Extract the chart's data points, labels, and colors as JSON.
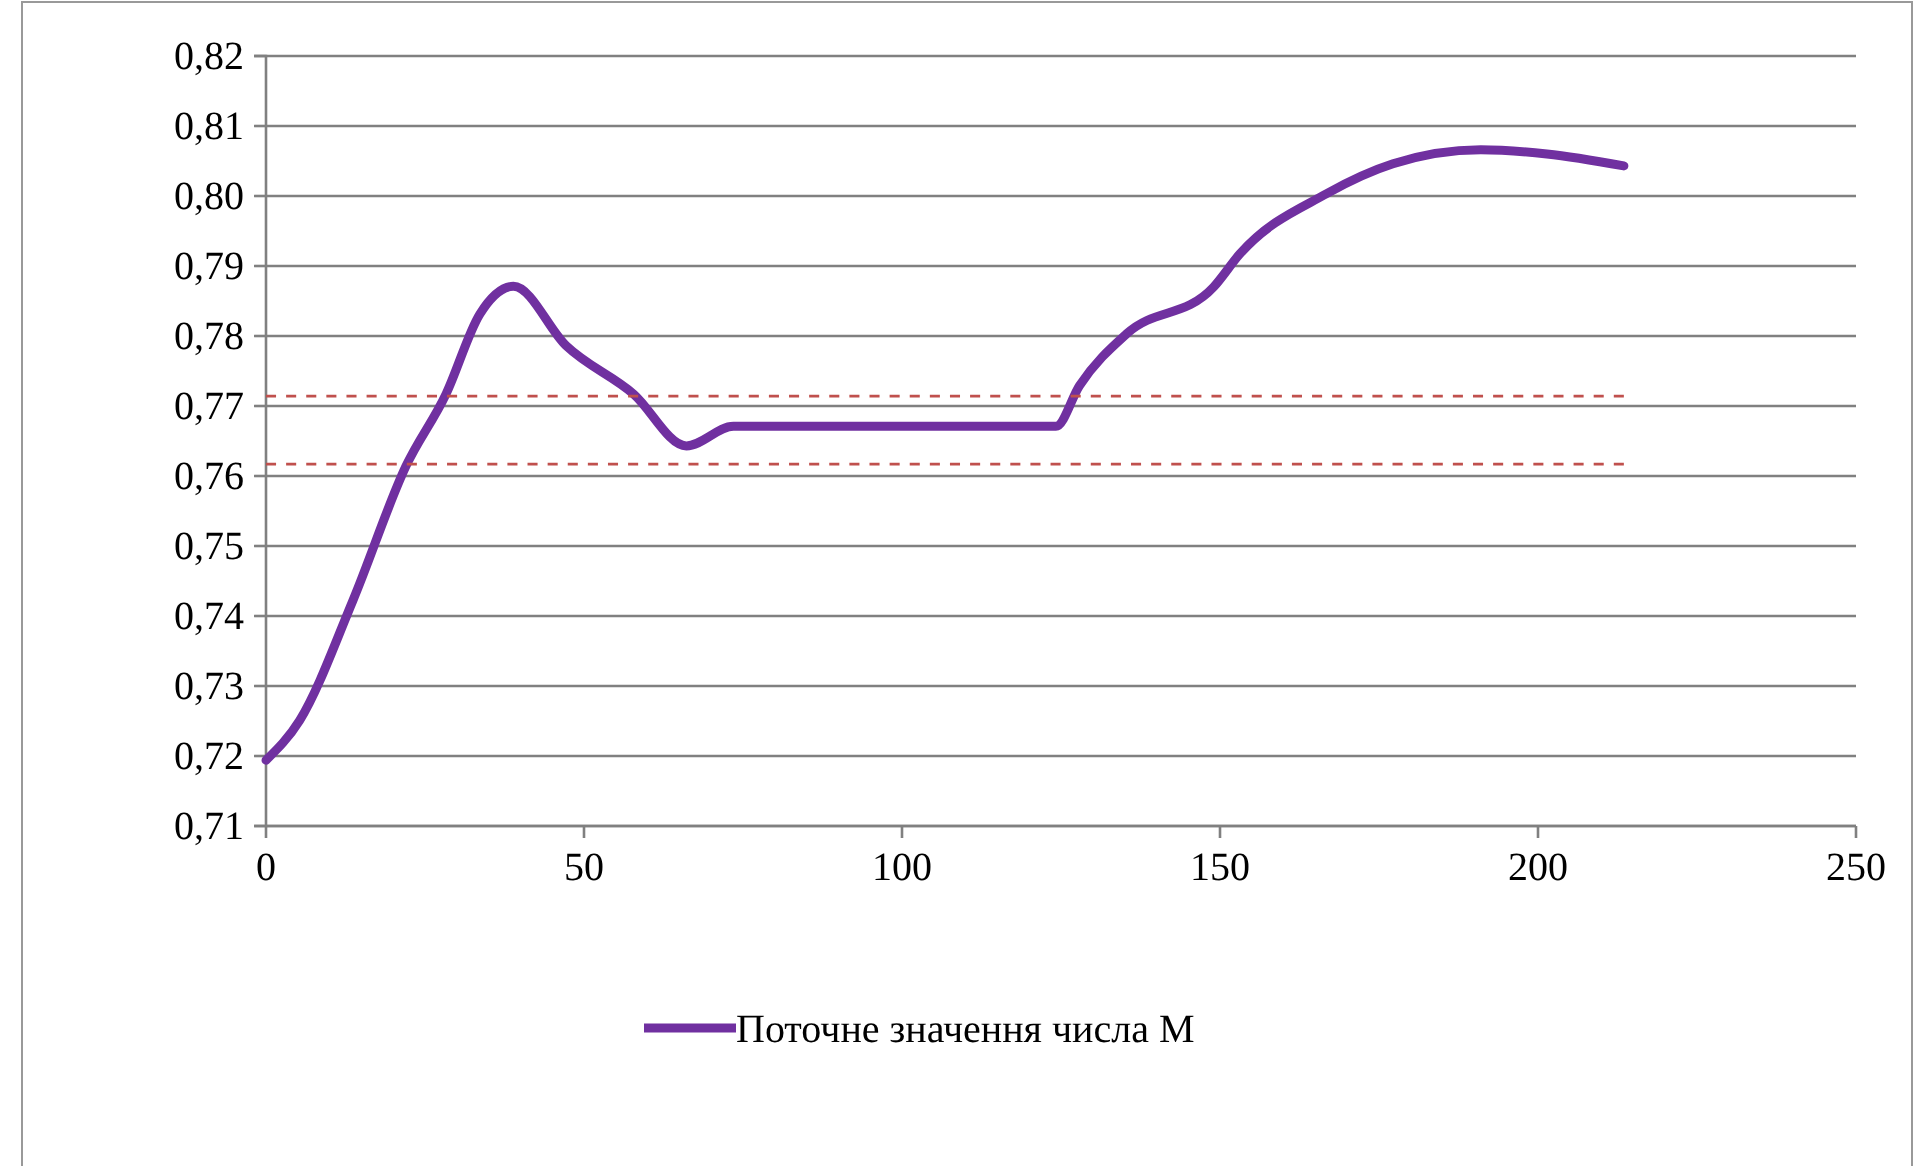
{
  "chart_data": {
    "type": "line",
    "xlim": [
      0,
      250
    ],
    "xticks": [
      0,
      50,
      100,
      150,
      200,
      250
    ],
    "ylim": [
      0.71,
      0.82
    ],
    "yticks": [
      {
        "value": 0.71,
        "label": "0,71"
      },
      {
        "value": 0.72,
        "label": "0,72"
      },
      {
        "value": 0.73,
        "label": "0,73"
      },
      {
        "value": 0.74,
        "label": "0,74"
      },
      {
        "value": 0.75,
        "label": "0,75"
      },
      {
        "value": 0.76,
        "label": "0,76"
      },
      {
        "value": 0.77,
        "label": "0,77"
      },
      {
        "value": 0.78,
        "label": "0,78"
      },
      {
        "value": 0.79,
        "label": "0,79"
      },
      {
        "value": 0.8,
        "label": "0,80"
      },
      {
        "value": 0.81,
        "label": "0,81"
      },
      {
        "value": 0.82,
        "label": "0,82"
      }
    ],
    "grid": "y",
    "legend": "bottom",
    "marker": "none",
    "series": [
      {
        "name": "Поточне значення числа M",
        "color": "#7030a0",
        "line_style": "solid",
        "x": [
          0,
          5.3,
          13.7,
          22,
          28.3,
          33.6,
          38.9,
          47.2,
          57.8,
          66.1,
          73.5,
          100,
          124.2,
          127.9,
          135.3,
          149,
          153.1,
          166.7,
          177.2,
          191,
          201.4,
          213.5
        ],
        "values": [
          0.7194,
          0.7251,
          0.7423,
          0.7614,
          0.7717,
          0.7831,
          0.7871,
          0.7786,
          0.7717,
          0.7643,
          0.7671,
          0.7671,
          0.7671,
          0.7729,
          0.7803,
          0.787,
          0.7917,
          0.8003,
          0.8046,
          0.8066,
          0.806,
          0.8043
        ]
      },
      {
        "color": "#c0504d",
        "line_style": "dashed",
        "x": [
          0,
          213.5
        ],
        "values": [
          0.7714,
          0.7714
        ]
      },
      {
        "color": "#c0504d",
        "line_style": "dashed",
        "x": [
          0,
          213.5
        ],
        "values": [
          0.7617,
          0.7617
        ]
      }
    ]
  }
}
